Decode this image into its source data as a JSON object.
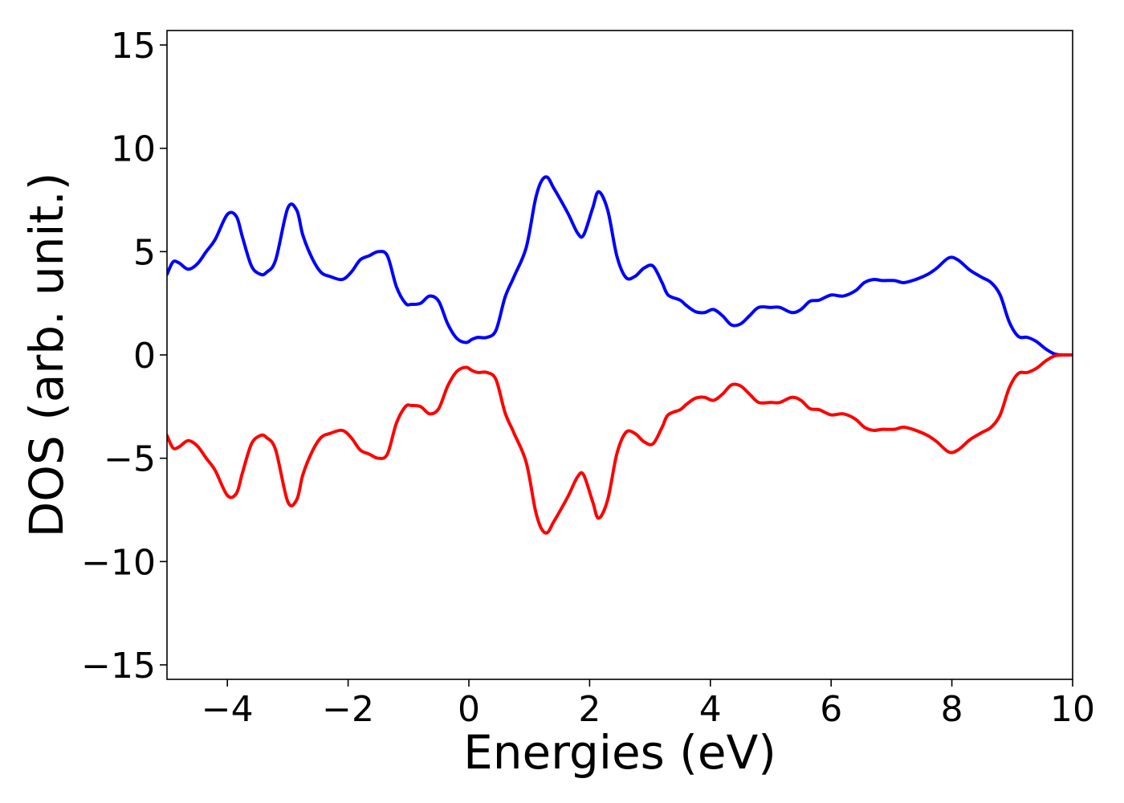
{
  "chart_data": {
    "type": "line",
    "title": "",
    "xlabel": "Energies (eV)",
    "ylabel": "DOS (arb. unit.)",
    "xlim": [
      -5,
      10
    ],
    "ylim": [
      -15.7,
      15.7
    ],
    "xticks": [
      -4,
      -2,
      0,
      2,
      4,
      6,
      8,
      10
    ],
    "xtick_labels": [
      "−4",
      "−2",
      "0",
      "2",
      "4",
      "6",
      "8",
      "10"
    ],
    "yticks": [
      -15,
      -10,
      -5,
      0,
      5,
      10,
      15
    ],
    "ytick_labels": [
      "−15",
      "−10",
      "−5",
      "0",
      "5",
      "10",
      "15"
    ],
    "grid": false,
    "legend": "none",
    "series": [
      {
        "color": "#0000ff",
        "x": [
          -5.0,
          -4.9,
          -4.8,
          -4.65,
          -4.5,
          -4.35,
          -4.2,
          -4.0,
          -3.85,
          -3.75,
          -3.6,
          -3.45,
          -3.35,
          -3.2,
          -3.0,
          -2.85,
          -2.75,
          -2.6,
          -2.45,
          -2.3,
          -2.1,
          -1.95,
          -1.8,
          -1.65,
          -1.5,
          -1.35,
          -1.2,
          -1.05,
          -0.95,
          -0.8,
          -0.65,
          -0.5,
          -0.35,
          -0.2,
          -0.05,
          0.05,
          0.15,
          0.3,
          0.45,
          0.6,
          0.75,
          0.95,
          1.1,
          1.2,
          1.3,
          1.4,
          1.5,
          1.65,
          1.8,
          1.9,
          2.05,
          2.15,
          2.3,
          2.45,
          2.6,
          2.75,
          2.9,
          3.05,
          3.2,
          3.3,
          3.5,
          3.6,
          3.75,
          3.9,
          4.05,
          4.2,
          4.35,
          4.5,
          4.65,
          4.8,
          5.0,
          5.15,
          5.35,
          5.5,
          5.65,
          5.8,
          6.0,
          6.2,
          6.4,
          6.55,
          6.7,
          6.85,
          7.05,
          7.2,
          7.4,
          7.6,
          7.75,
          7.95,
          8.1,
          8.3,
          8.5,
          8.65,
          8.8,
          8.95,
          9.1,
          9.25,
          9.4,
          9.55,
          9.7,
          9.85,
          10.0
        ],
        "y": [
          3.9,
          4.5,
          4.45,
          4.15,
          4.4,
          5.0,
          5.6,
          6.8,
          6.7,
          5.7,
          4.3,
          3.9,
          4.0,
          4.6,
          7.1,
          7.0,
          5.8,
          4.7,
          4.0,
          3.8,
          3.65,
          4.0,
          4.6,
          4.8,
          5.0,
          4.8,
          3.3,
          2.5,
          2.45,
          2.5,
          2.85,
          2.6,
          1.5,
          0.8,
          0.6,
          0.75,
          0.85,
          0.85,
          1.2,
          2.8,
          3.8,
          5.2,
          7.5,
          8.4,
          8.6,
          8.1,
          7.6,
          6.8,
          5.9,
          5.8,
          7.1,
          7.9,
          7.0,
          4.8,
          3.75,
          3.8,
          4.2,
          4.3,
          3.5,
          2.9,
          2.65,
          2.4,
          2.1,
          2.05,
          2.2,
          1.9,
          1.45,
          1.5,
          1.9,
          2.3,
          2.3,
          2.3,
          2.05,
          2.2,
          2.6,
          2.65,
          2.9,
          2.85,
          3.1,
          3.5,
          3.65,
          3.6,
          3.6,
          3.5,
          3.65,
          3.9,
          4.2,
          4.7,
          4.6,
          4.1,
          3.75,
          3.5,
          2.9,
          1.6,
          0.9,
          0.85,
          0.65,
          0.3,
          0.05,
          0.0,
          0.0
        ]
      },
      {
        "color": "#ff0000",
        "x": [
          -5.0,
          -4.9,
          -4.8,
          -4.65,
          -4.5,
          -4.35,
          -4.2,
          -4.0,
          -3.85,
          -3.75,
          -3.6,
          -3.45,
          -3.35,
          -3.2,
          -3.0,
          -2.85,
          -2.75,
          -2.6,
          -2.45,
          -2.3,
          -2.1,
          -1.95,
          -1.8,
          -1.65,
          -1.5,
          -1.35,
          -1.2,
          -1.05,
          -0.95,
          -0.8,
          -0.65,
          -0.5,
          -0.35,
          -0.2,
          -0.05,
          0.05,
          0.15,
          0.3,
          0.45,
          0.6,
          0.75,
          0.95,
          1.1,
          1.2,
          1.3,
          1.4,
          1.5,
          1.65,
          1.8,
          1.9,
          2.05,
          2.15,
          2.3,
          2.45,
          2.6,
          2.75,
          2.9,
          3.05,
          3.2,
          3.3,
          3.5,
          3.6,
          3.75,
          3.9,
          4.05,
          4.2,
          4.35,
          4.5,
          4.65,
          4.8,
          5.0,
          5.15,
          5.35,
          5.5,
          5.65,
          5.8,
          6.0,
          6.2,
          6.4,
          6.55,
          6.7,
          6.85,
          7.05,
          7.2,
          7.4,
          7.6,
          7.75,
          7.95,
          8.1,
          8.3,
          8.5,
          8.65,
          8.8,
          8.95,
          9.1,
          9.25,
          9.4,
          9.55,
          9.7,
          9.85,
          10.0
        ],
        "y": [
          -3.9,
          -4.5,
          -4.45,
          -4.15,
          -4.4,
          -5.0,
          -5.6,
          -6.8,
          -6.7,
          -5.7,
          -4.3,
          -3.9,
          -4.0,
          -4.6,
          -7.1,
          -7.0,
          -5.8,
          -4.7,
          -4.0,
          -3.8,
          -3.65,
          -4.0,
          -4.6,
          -4.8,
          -5.0,
          -4.8,
          -3.3,
          -2.5,
          -2.45,
          -2.5,
          -2.85,
          -2.6,
          -1.5,
          -0.8,
          -0.6,
          -0.75,
          -0.85,
          -0.85,
          -1.2,
          -2.8,
          -3.8,
          -5.2,
          -7.5,
          -8.4,
          -8.6,
          -8.1,
          -7.6,
          -6.8,
          -5.9,
          -5.8,
          -7.1,
          -7.9,
          -7.0,
          -4.8,
          -3.75,
          -3.8,
          -4.2,
          -4.3,
          -3.5,
          -2.9,
          -2.65,
          -2.4,
          -2.1,
          -2.05,
          -2.2,
          -1.9,
          -1.45,
          -1.5,
          -1.9,
          -2.3,
          -2.3,
          -2.3,
          -2.05,
          -2.2,
          -2.6,
          -2.65,
          -2.9,
          -2.85,
          -3.1,
          -3.5,
          -3.65,
          -3.6,
          -3.6,
          -3.5,
          -3.65,
          -3.9,
          -4.2,
          -4.7,
          -4.6,
          -4.1,
          -3.75,
          -3.5,
          -2.9,
          -1.6,
          -0.9,
          -0.85,
          -0.65,
          -0.3,
          -0.05,
          0.0,
          0.0
        ]
      }
    ]
  }
}
